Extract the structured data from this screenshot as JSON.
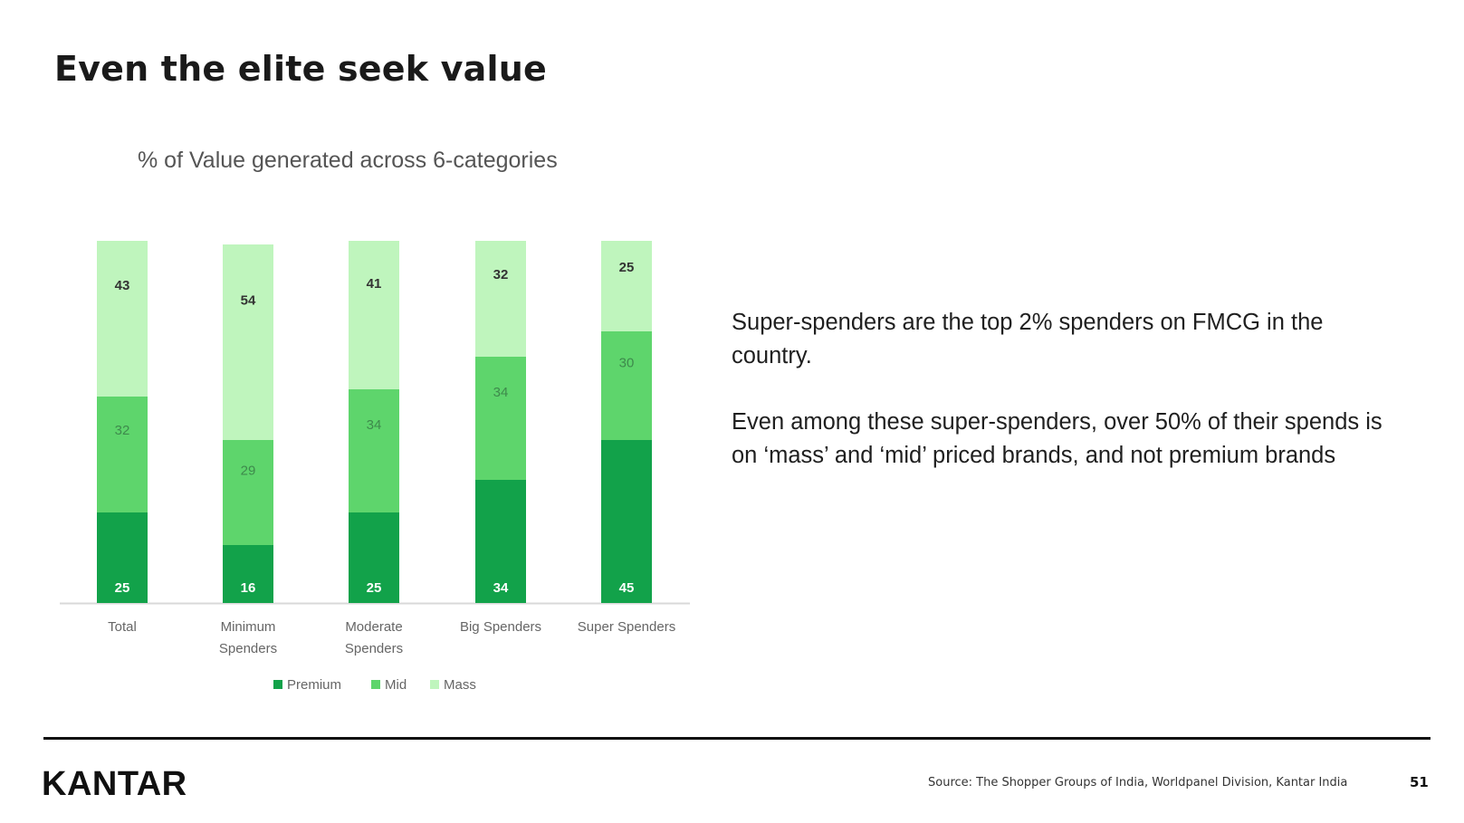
{
  "slide": {
    "title": "Even the elite seek value",
    "notes": [
      "Super-spenders are the top 2% spenders on FMCG in the country.",
      "Even among these super-spenders, over 50% of their spends is on ‘mass’ and ‘mid’ priced brands, and not premium brands"
    ],
    "brand": "KANTAR",
    "source": "Source: The Shopper Groups of India, Worldpanel Division, Kantar India",
    "page_number": "51"
  },
  "colors": {
    "premium": "#12a24a",
    "mid": "#5ed56c",
    "mass": "#bff5bd",
    "label_light": "#ffffff",
    "label_dark": "#333333",
    "label_mid": "#3e8a4c",
    "axis": "#d9d9d9"
  },
  "chart_data": {
    "type": "bar",
    "stacked": true,
    "title": "% of Value generated across 6-categories",
    "categories": [
      [
        "Total"
      ],
      [
        "Minimum",
        "Spenders"
      ],
      [
        "Moderate",
        "Spenders"
      ],
      [
        "Big Spenders"
      ],
      [
        "Super Spenders"
      ]
    ],
    "series": [
      {
        "name": "Premium",
        "values": [
          25,
          16,
          25,
          34,
          45
        ]
      },
      {
        "name": "Mid",
        "values": [
          32,
          29,
          34,
          34,
          30
        ]
      },
      {
        "name": "Mass",
        "values": [
          43,
          54,
          41,
          32,
          25
        ]
      }
    ],
    "ylim": [
      0,
      100
    ],
    "legend_position": "bottom",
    "grid": false
  }
}
